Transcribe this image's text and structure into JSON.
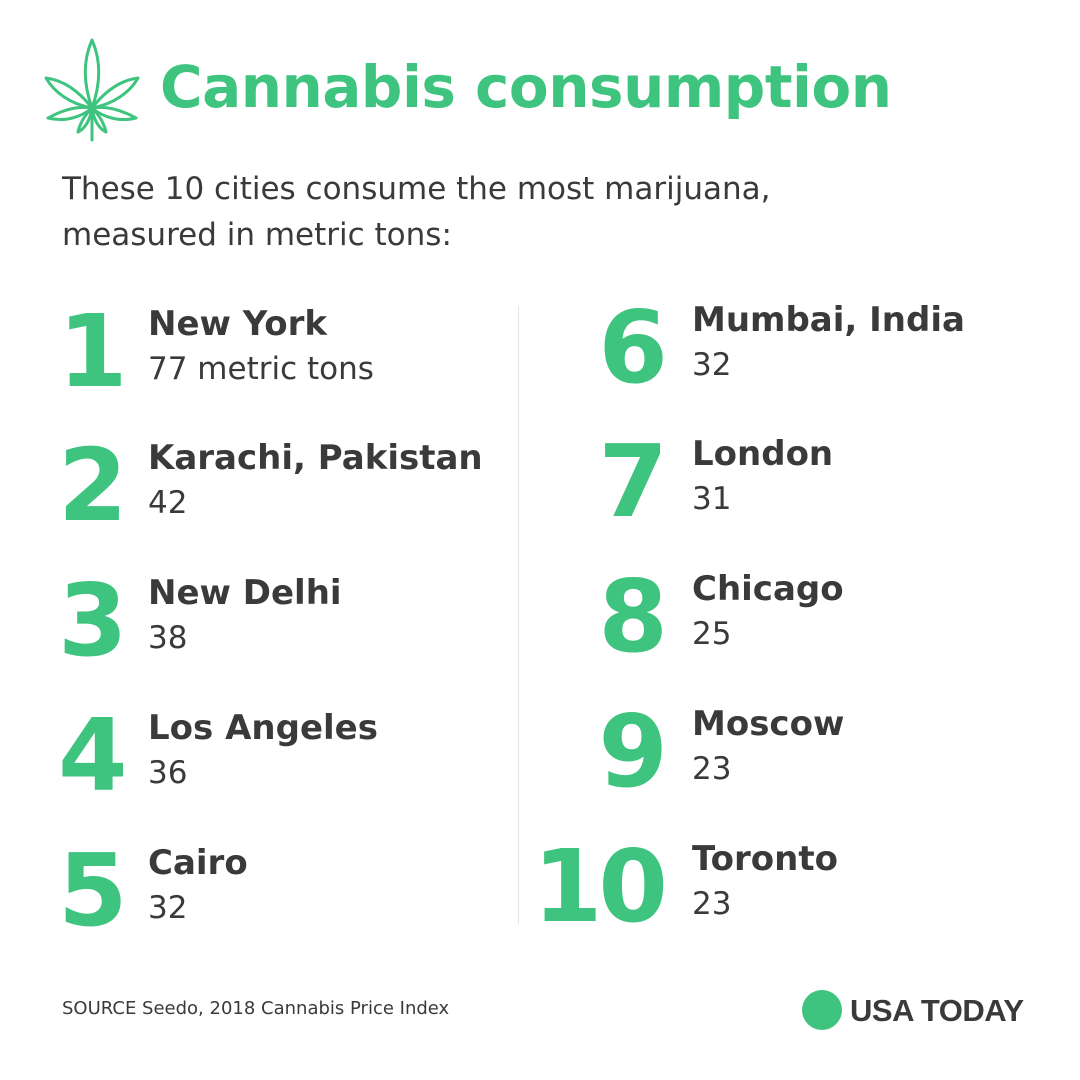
{
  "header": {
    "icon": "cannabis-leaf-icon",
    "title": "Cannabis consumption",
    "subtitle_line1": "These 10 cities consume the most marijuana,",
    "subtitle_line2": "measured in metric tons:"
  },
  "rankings": [
    {
      "rank": "1",
      "city": "New York",
      "value": "77 metric tons"
    },
    {
      "rank": "2",
      "city": "Karachi, Pakistan",
      "value": "42"
    },
    {
      "rank": "3",
      "city": "New Delhi",
      "value": "38"
    },
    {
      "rank": "4",
      "city": "Los Angeles",
      "value": "36"
    },
    {
      "rank": "5",
      "city": "Cairo",
      "value": "32"
    },
    {
      "rank": "6",
      "city": "Mumbai, India",
      "value": "32"
    },
    {
      "rank": "7",
      "city": "London",
      "value": "31"
    },
    {
      "rank": "8",
      "city": "Chicago",
      "value": "25"
    },
    {
      "rank": "9",
      "city": "Moscow",
      "value": "23"
    },
    {
      "rank": "10",
      "city": "Toronto",
      "value": "23"
    }
  ],
  "footer": {
    "source": "SOURCE Seedo, 2018 Cannabis Price Index",
    "brand": "USA TODAY",
    "brand_icon": "green-circle-icon"
  },
  "colors": {
    "accent": "#3ec47f",
    "text": "#3a3a3a"
  }
}
